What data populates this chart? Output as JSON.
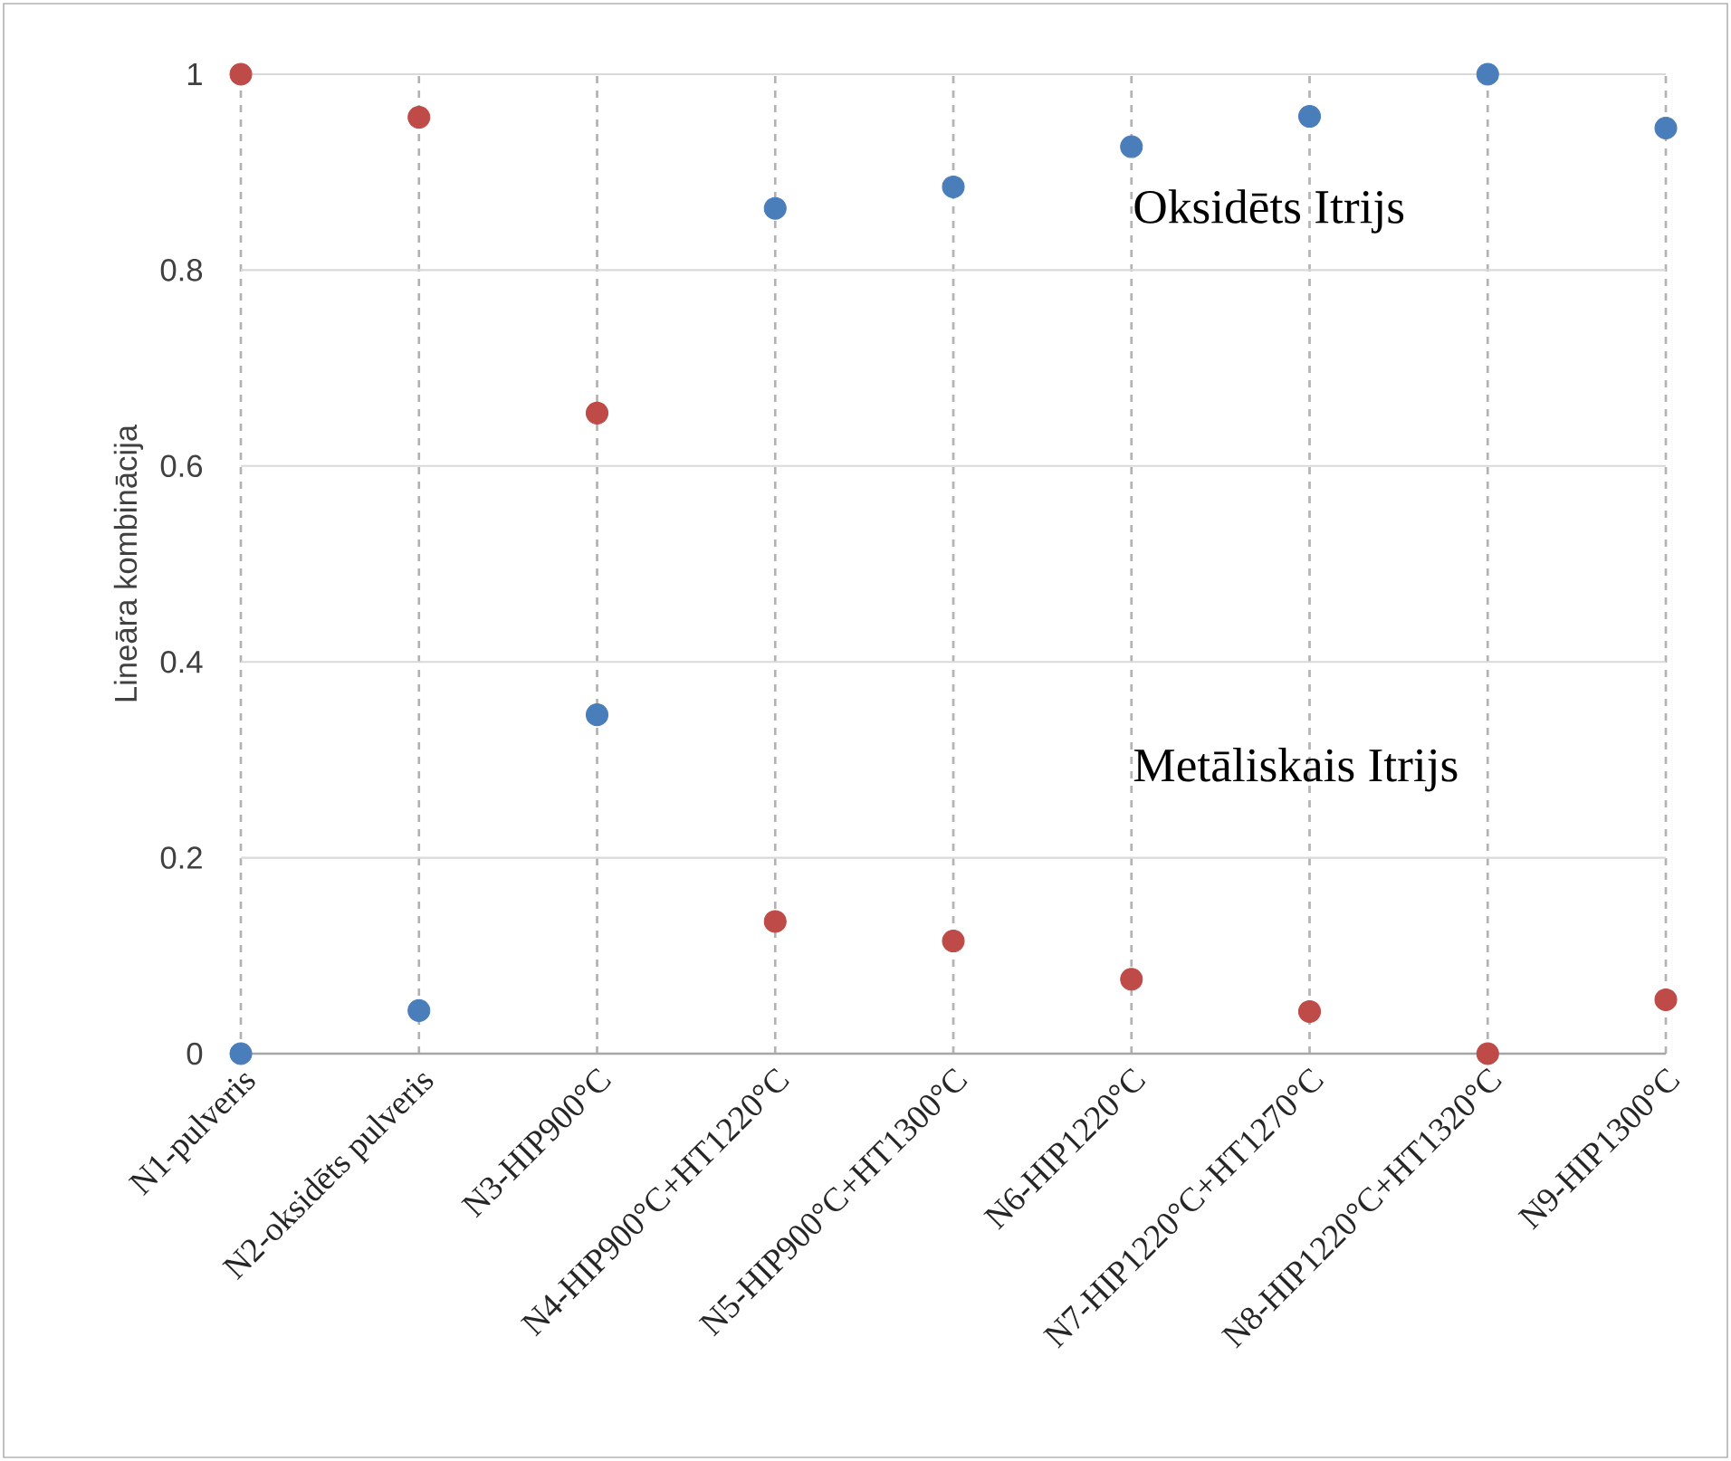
{
  "chart_data": {
    "type": "scatter",
    "ylabel": "Lineāra kombinācija",
    "categories": [
      "N1-pulveris",
      "N2-oksidēts pulveris",
      "N3-HIP900°C",
      "N4-HIP900°C+HT1220°C",
      "N5-HIP900°C+HT1300°C",
      "N6-HIP1220°C",
      "N7-HIP1220°C+HT1270°C",
      "N8-HIP1220°C+HT1320°C",
      "N9-HIP1300°C"
    ],
    "series": [
      {
        "color": "#4a7ebb",
        "values": [
          0,
          0.044,
          0.346,
          0.863,
          0.885,
          0.926,
          0.957,
          1,
          0.945
        ]
      },
      {
        "color": "#be4b48",
        "values": [
          1,
          0.956,
          0.654,
          0.135,
          0.115,
          0.076,
          0.043,
          0,
          0.055
        ]
      }
    ],
    "ylim": [
      0,
      1
    ],
    "yticks": [
      0,
      0.2,
      0.4,
      0.6,
      0.8,
      1
    ],
    "grid": true,
    "annotations": [
      "Oksidēts Itrijs",
      "Metāliskais Itrijs"
    ]
  }
}
